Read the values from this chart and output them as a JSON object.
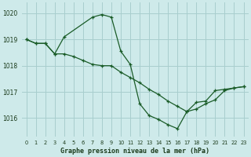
{
  "title": "Graphe pression niveau de la mer (hPa)",
  "background_color": "#ceeaea",
  "grid_color": "#a8cece",
  "line_color": "#1a5c28",
  "xlim": [
    -0.5,
    23.5
  ],
  "ylim": [
    1015.3,
    1020.4
  ],
  "yticks": [
    1016,
    1017,
    1018,
    1019,
    1020
  ],
  "xticks": [
    0,
    1,
    2,
    3,
    4,
    5,
    6,
    7,
    8,
    9,
    10,
    11,
    12,
    13,
    14,
    15,
    16,
    17,
    18,
    19,
    20,
    21,
    22,
    23
  ],
  "series1_x": [
    0,
    1,
    2,
    3,
    4,
    5,
    6,
    7,
    8,
    9,
    10,
    11,
    12,
    13,
    14,
    15,
    16,
    17,
    18,
    19,
    20,
    21,
    22,
    23
  ],
  "series1_y": [
    1019.0,
    1018.85,
    1018.85,
    1018.45,
    1018.45,
    1018.35,
    1018.2,
    1018.05,
    1018.0,
    1018.0,
    1017.75,
    1017.55,
    1017.35,
    1017.1,
    1016.9,
    1016.65,
    1016.45,
    1016.25,
    1016.6,
    1016.65,
    1017.05,
    1017.1,
    1017.15,
    1017.2
  ],
  "series2_x": [
    0,
    1,
    2,
    3,
    4,
    7,
    8,
    9,
    10,
    11,
    12,
    13,
    14,
    15,
    16,
    17,
    18,
    19,
    20,
    21,
    22,
    23
  ],
  "series2_y": [
    1019.0,
    1018.85,
    1018.85,
    1018.45,
    1019.1,
    1019.85,
    1019.95,
    1019.85,
    1018.55,
    1018.05,
    1016.55,
    1016.1,
    1015.95,
    1015.75,
    1015.6,
    1016.25,
    1016.35,
    1016.55,
    1016.7,
    1017.05,
    1017.15,
    1017.2
  ],
  "ylabel_color": "#1a3a1a",
  "tick_color": "#1a3a1a"
}
